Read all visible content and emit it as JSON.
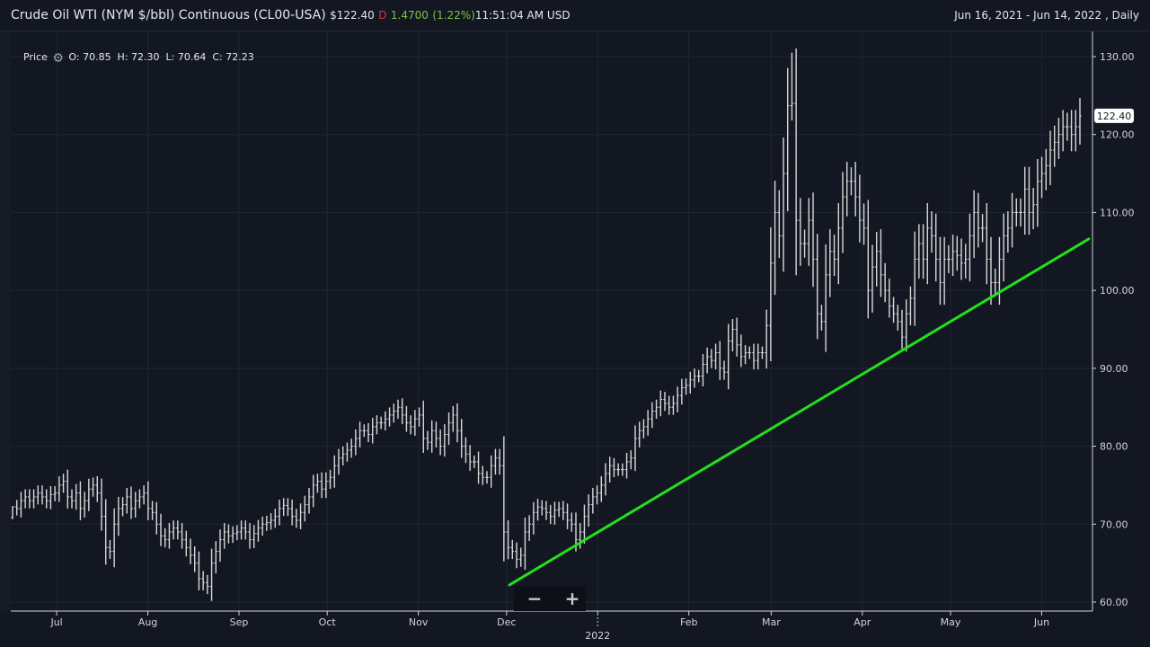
{
  "header": {
    "instrument": "Crude Oil WTI (NYM $/bbl) Continuous (CL00-USA)",
    "currency_symbol": "$",
    "last_price": "122.40",
    "flag": "D",
    "change": "1.4700",
    "change_pct": "(1.22%)",
    "time": "11:51:04 AM USD",
    "date_range": "Jun 16, 2021 - Jun 14, 2022 , Daily"
  },
  "legend": {
    "label": "Price",
    "icon": "gear-icon",
    "ohlc": "O: 70.85  H: 72.30  L: 70.64  C: 72.23"
  },
  "zoom": {
    "minus": "−",
    "plus": "+"
  },
  "colors": {
    "background": "#131722",
    "bars": "#d8d8d8",
    "trendline": "#22e01c",
    "grid": "#1e2636",
    "down": "#e0323c",
    "up": "#7ec243"
  },
  "chart_data": {
    "type": "ohlc-bar",
    "title": "Crude Oil WTI (NYM $/bbl) Continuous (CL00-USA)",
    "range": [
      "2021-06-16",
      "2022-06-14"
    ],
    "interval": "Daily",
    "ylim": [
      60,
      130
    ],
    "y_ticks": [
      "60.00",
      "70.00",
      "80.00",
      "90.00",
      "100.00",
      "110.00",
      "120.00",
      "130.00"
    ],
    "x_ticks": [
      {
        "label": "Jul",
        "date": "2021-07-01"
      },
      {
        "label": "Aug",
        "date": "2021-08-01"
      },
      {
        "label": "Sep",
        "date": "2021-09-01"
      },
      {
        "label": "Oct",
        "date": "2021-10-01"
      },
      {
        "label": "Nov",
        "date": "2021-11-01"
      },
      {
        "label": "Dec",
        "date": "2021-12-01"
      },
      {
        "label": "2022",
        "date": "2022-01-01"
      },
      {
        "label": "Feb",
        "date": "2022-02-01"
      },
      {
        "label": "Mar",
        "date": "2022-03-01"
      },
      {
        "label": "Apr",
        "date": "2022-04-01"
      },
      {
        "label": "May",
        "date": "2022-05-01"
      },
      {
        "label": "Jun",
        "date": "2022-06-01"
      }
    ],
    "first_bar": {
      "open": 70.85,
      "high": 72.3,
      "low": 70.64,
      "close": 72.23
    },
    "last_price_label": "122.40",
    "peak_high": 130.5,
    "closes": [
      72.23,
      72,
      73,
      73.5,
      73,
      73.5,
      74,
      73.5,
      73,
      73.8,
      74,
      75,
      75.5,
      73.5,
      73,
      74,
      72,
      73,
      74.5,
      75,
      74,
      71,
      67,
      66.5,
      70,
      72,
      72.5,
      73.5,
      72,
      73,
      73.5,
      74,
      72,
      71.5,
      70,
      68.5,
      68,
      69,
      69.5,
      69,
      68,
      67,
      66,
      65,
      63,
      62.5,
      62,
      65,
      66.5,
      68,
      69,
      68.5,
      68.8,
      69,
      69.5,
      69,
      68,
      68.8,
      69.5,
      70,
      70.2,
      70.5,
      71,
      72,
      72.4,
      72,
      71,
      70.5,
      71.5,
      72.5,
      73.5,
      75,
      75.5,
      74.5,
      75.5,
      76,
      77.5,
      78.5,
      79,
      79.5,
      80,
      81,
      82,
      82,
      81.5,
      82.5,
      83,
      83,
      83.5,
      84,
      84.5,
      85,
      84,
      83,
      82.5,
      83.5,
      84,
      81,
      80.5,
      82,
      81,
      80,
      81.5,
      83,
      84,
      82,
      80,
      79,
      78,
      78,
      76.5,
      76,
      76,
      77.5,
      78.5,
      77.5,
      69,
      67,
      66.5,
      65.5,
      66,
      69,
      70,
      71.5,
      72.2,
      72,
      71.5,
      71,
      71.8,
      72,
      71.5,
      70.5,
      70,
      68,
      69,
      71,
      72.5,
      73.5,
      74,
      75,
      76.5,
      77.5,
      77,
      77,
      77,
      78,
      78.5,
      81,
      82,
      82.5,
      83.5,
      84.5,
      85,
      86,
      85.5,
      85,
      85.5,
      86.5,
      87.5,
      87.8,
      88.5,
      89,
      89,
      90.5,
      91.5,
      91,
      92,
      90,
      89.5,
      93.5,
      95,
      93,
      91.5,
      92,
      92,
      91,
      92,
      92,
      95.5,
      103.5,
      110,
      107,
      115,
      123.7,
      124,
      109,
      106,
      106,
      109,
      104,
      97,
      96,
      102,
      105,
      104,
      108,
      112,
      114,
      114,
      112,
      109,
      108,
      100,
      103,
      105,
      102,
      100,
      98,
      97,
      96,
      94,
      97,
      99,
      104,
      106,
      104,
      108,
      107,
      104,
      101,
      104,
      104,
      105,
      104.5,
      103.5,
      104,
      107,
      110,
      108,
      108,
      104,
      101,
      101,
      104,
      107,
      108,
      110,
      110,
      110,
      113,
      110,
      111,
      114,
      115,
      116,
      118,
      119,
      120,
      121,
      121,
      120,
      121,
      122.4
    ],
    "trendline": {
      "start": {
        "date": "2021-12-02",
        "price": 62.2
      },
      "end": {
        "date": "2022-06-17",
        "price": 106.6
      }
    }
  }
}
